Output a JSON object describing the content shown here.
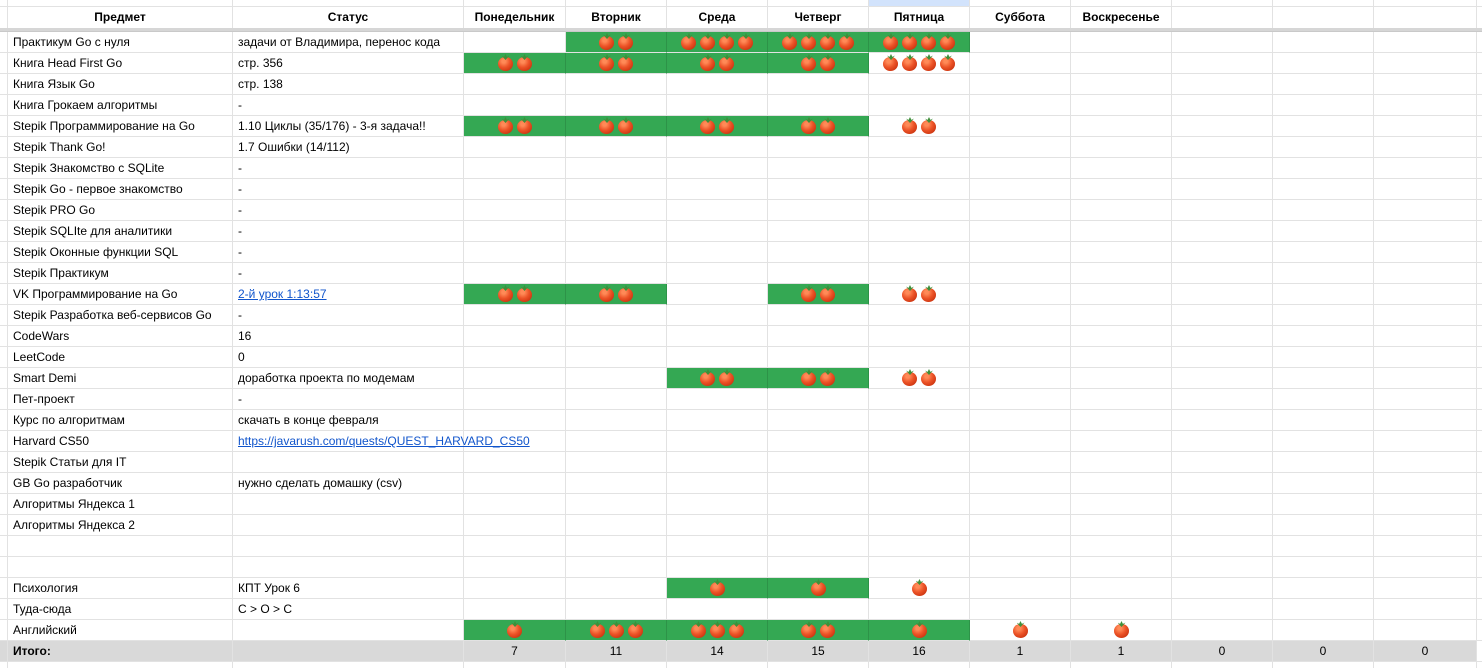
{
  "sheet": {
    "header": {
      "subject": "Предмет",
      "status": "Статус",
      "days": [
        "Понедельник",
        "Вторник",
        "Среда",
        "Четверг",
        "Пятница",
        "Суббота",
        "Воскресенье"
      ]
    },
    "selected_day_column": "Пятница",
    "rows": [
      {
        "subject": "Практикум Go с нуля",
        "status": "задачи от Владимира, перенос кода",
        "status_is_link": false,
        "days": [
          [
            0,
            0
          ],
          [
            2,
            1
          ],
          [
            4,
            1
          ],
          [
            4,
            1
          ],
          [
            4,
            1
          ],
          [
            0,
            0
          ],
          [
            0,
            0
          ]
        ]
      },
      {
        "subject": "Книга Head First Go",
        "status": "стр. 356",
        "status_is_link": false,
        "days": [
          [
            2,
            1
          ],
          [
            2,
            1
          ],
          [
            2,
            1
          ],
          [
            2,
            1
          ],
          [
            4,
            0
          ],
          [
            0,
            0
          ],
          [
            0,
            0
          ]
        ]
      },
      {
        "subject": "Книга Язык Go",
        "status": "стр. 138",
        "status_is_link": false,
        "days": [
          [
            0,
            0
          ],
          [
            0,
            0
          ],
          [
            0,
            0
          ],
          [
            0,
            0
          ],
          [
            0,
            0
          ],
          [
            0,
            0
          ],
          [
            0,
            0
          ]
        ]
      },
      {
        "subject": "Книга Грокаем алгоритмы",
        "status": "-",
        "status_is_link": false,
        "days": [
          [
            0,
            0
          ],
          [
            0,
            0
          ],
          [
            0,
            0
          ],
          [
            0,
            0
          ],
          [
            0,
            0
          ],
          [
            0,
            0
          ],
          [
            0,
            0
          ]
        ]
      },
      {
        "subject": "Stepik Программирование на Go",
        "status": "1.10 Циклы (35/176) - 3-я задача!!",
        "status_is_link": false,
        "days": [
          [
            2,
            1
          ],
          [
            2,
            1
          ],
          [
            2,
            1
          ],
          [
            2,
            1
          ],
          [
            2,
            0
          ],
          [
            0,
            0
          ],
          [
            0,
            0
          ]
        ]
      },
      {
        "subject": "Stepik Thank Go!",
        "status": "1.7 Ошибки (14/112)",
        "status_is_link": false,
        "days": [
          [
            0,
            0
          ],
          [
            0,
            0
          ],
          [
            0,
            0
          ],
          [
            0,
            0
          ],
          [
            0,
            0
          ],
          [
            0,
            0
          ],
          [
            0,
            0
          ]
        ]
      },
      {
        "subject": "Stepik Знакомство с SQLite",
        "status": "-",
        "status_is_link": false,
        "days": [
          [
            0,
            0
          ],
          [
            0,
            0
          ],
          [
            0,
            0
          ],
          [
            0,
            0
          ],
          [
            0,
            0
          ],
          [
            0,
            0
          ],
          [
            0,
            0
          ]
        ]
      },
      {
        "subject": "Stepik Go - первое знакомство",
        "status": "-",
        "status_is_link": false,
        "days": [
          [
            0,
            0
          ],
          [
            0,
            0
          ],
          [
            0,
            0
          ],
          [
            0,
            0
          ],
          [
            0,
            0
          ],
          [
            0,
            0
          ],
          [
            0,
            0
          ]
        ]
      },
      {
        "subject": "Stepik PRO Go",
        "status": "-",
        "status_is_link": false,
        "days": [
          [
            0,
            0
          ],
          [
            0,
            0
          ],
          [
            0,
            0
          ],
          [
            0,
            0
          ],
          [
            0,
            0
          ],
          [
            0,
            0
          ],
          [
            0,
            0
          ]
        ]
      },
      {
        "subject": "Stepik SQLIte для аналитики",
        "status": "-",
        "status_is_link": false,
        "days": [
          [
            0,
            0
          ],
          [
            0,
            0
          ],
          [
            0,
            0
          ],
          [
            0,
            0
          ],
          [
            0,
            0
          ],
          [
            0,
            0
          ],
          [
            0,
            0
          ]
        ]
      },
      {
        "subject": "Stepik Оконные функции SQL",
        "status": "-",
        "status_is_link": false,
        "days": [
          [
            0,
            0
          ],
          [
            0,
            0
          ],
          [
            0,
            0
          ],
          [
            0,
            0
          ],
          [
            0,
            0
          ],
          [
            0,
            0
          ],
          [
            0,
            0
          ]
        ]
      },
      {
        "subject": "Stepik Практикум",
        "status": "-",
        "status_is_link": false,
        "days": [
          [
            0,
            0
          ],
          [
            0,
            0
          ],
          [
            0,
            0
          ],
          [
            0,
            0
          ],
          [
            0,
            0
          ],
          [
            0,
            0
          ],
          [
            0,
            0
          ]
        ]
      },
      {
        "subject": "VK Программирование на Go",
        "status": "2-й урок 1:13:57",
        "status_is_link": true,
        "days": [
          [
            2,
            1
          ],
          [
            2,
            1
          ],
          [
            0,
            0
          ],
          [
            2,
            1
          ],
          [
            2,
            0
          ],
          [
            0,
            0
          ],
          [
            0,
            0
          ]
        ]
      },
      {
        "subject": "Stepik Разработка веб-сервисов Go",
        "status": "-",
        "status_is_link": false,
        "days": [
          [
            0,
            0
          ],
          [
            0,
            0
          ],
          [
            0,
            0
          ],
          [
            0,
            0
          ],
          [
            0,
            0
          ],
          [
            0,
            0
          ],
          [
            0,
            0
          ]
        ]
      },
      {
        "subject": "CodeWars",
        "status": "16",
        "status_is_link": false,
        "days": [
          [
            0,
            0
          ],
          [
            0,
            0
          ],
          [
            0,
            0
          ],
          [
            0,
            0
          ],
          [
            0,
            0
          ],
          [
            0,
            0
          ],
          [
            0,
            0
          ]
        ]
      },
      {
        "subject": "LeetCode",
        "status": "0",
        "status_is_link": false,
        "days": [
          [
            0,
            0
          ],
          [
            0,
            0
          ],
          [
            0,
            0
          ],
          [
            0,
            0
          ],
          [
            0,
            0
          ],
          [
            0,
            0
          ],
          [
            0,
            0
          ]
        ]
      },
      {
        "subject": "Smart Demi",
        "status": "доработка проекта по модемам",
        "status_is_link": false,
        "days": [
          [
            0,
            0
          ],
          [
            0,
            0
          ],
          [
            2,
            1
          ],
          [
            2,
            1
          ],
          [
            2,
            0
          ],
          [
            0,
            0
          ],
          [
            0,
            0
          ]
        ]
      },
      {
        "subject": "Пет-проект",
        "status": "-",
        "status_is_link": false,
        "days": [
          [
            0,
            0
          ],
          [
            0,
            0
          ],
          [
            0,
            0
          ],
          [
            0,
            0
          ],
          [
            0,
            0
          ],
          [
            0,
            0
          ],
          [
            0,
            0
          ]
        ]
      },
      {
        "subject": "Курс по алгоритмам",
        "status": "скачать в конце февраля",
        "status_is_link": false,
        "days": [
          [
            0,
            0
          ],
          [
            0,
            0
          ],
          [
            0,
            0
          ],
          [
            0,
            0
          ],
          [
            0,
            0
          ],
          [
            0,
            0
          ],
          [
            0,
            0
          ]
        ]
      },
      {
        "subject": "Harvard CS50",
        "status": "https://javarush.com/quests/QUEST_HARVARD_CS50",
        "status_is_link": true,
        "days": [
          [
            0,
            0
          ],
          [
            0,
            0
          ],
          [
            0,
            0
          ],
          [
            0,
            0
          ],
          [
            0,
            0
          ],
          [
            0,
            0
          ],
          [
            0,
            0
          ]
        ]
      },
      {
        "subject": "Stepik Статьи для IT",
        "status": "",
        "status_is_link": false,
        "days": [
          [
            0,
            0
          ],
          [
            0,
            0
          ],
          [
            0,
            0
          ],
          [
            0,
            0
          ],
          [
            0,
            0
          ],
          [
            0,
            0
          ],
          [
            0,
            0
          ]
        ]
      },
      {
        "subject": "GB Go разработчик",
        "status": "нужно сделать домашку (csv)",
        "status_is_link": false,
        "days": [
          [
            0,
            0
          ],
          [
            0,
            0
          ],
          [
            0,
            0
          ],
          [
            0,
            0
          ],
          [
            0,
            0
          ],
          [
            0,
            0
          ],
          [
            0,
            0
          ]
        ]
      },
      {
        "subject": "Алгоритмы Яндекса 1",
        "status": "",
        "status_is_link": false,
        "days": [
          [
            0,
            0
          ],
          [
            0,
            0
          ],
          [
            0,
            0
          ],
          [
            0,
            0
          ],
          [
            0,
            0
          ],
          [
            0,
            0
          ],
          [
            0,
            0
          ]
        ]
      },
      {
        "subject": "Алгоритмы Яндекса 2",
        "status": "",
        "status_is_link": false,
        "days": [
          [
            0,
            0
          ],
          [
            0,
            0
          ],
          [
            0,
            0
          ],
          [
            0,
            0
          ],
          [
            0,
            0
          ],
          [
            0,
            0
          ],
          [
            0,
            0
          ]
        ]
      },
      {
        "subject": "",
        "status": "",
        "status_is_link": false,
        "days": [
          [
            0,
            0
          ],
          [
            0,
            0
          ],
          [
            0,
            0
          ],
          [
            0,
            0
          ],
          [
            0,
            0
          ],
          [
            0,
            0
          ],
          [
            0,
            0
          ]
        ]
      },
      {
        "subject": "",
        "status": "",
        "status_is_link": false,
        "days": [
          [
            0,
            0
          ],
          [
            0,
            0
          ],
          [
            0,
            0
          ],
          [
            0,
            0
          ],
          [
            0,
            0
          ],
          [
            0,
            0
          ],
          [
            0,
            0
          ]
        ]
      },
      {
        "subject": "Психология",
        "status": "КПТ Урок 6",
        "status_is_link": false,
        "days": [
          [
            0,
            0
          ],
          [
            0,
            0
          ],
          [
            1,
            1
          ],
          [
            1,
            1
          ],
          [
            1,
            0
          ],
          [
            0,
            0
          ],
          [
            0,
            0
          ]
        ]
      },
      {
        "subject": "Туда-сюда",
        "status": "C > O > C",
        "status_is_link": false,
        "days": [
          [
            0,
            0
          ],
          [
            0,
            0
          ],
          [
            0,
            0
          ],
          [
            0,
            0
          ],
          [
            0,
            0
          ],
          [
            0,
            0
          ],
          [
            0,
            0
          ]
        ]
      },
      {
        "subject": "Английский",
        "status": "",
        "status_is_link": false,
        "days": [
          [
            1,
            1
          ],
          [
            3,
            1
          ],
          [
            3,
            1
          ],
          [
            2,
            1
          ],
          [
            1,
            1
          ],
          [
            1,
            0
          ],
          [
            1,
            0
          ]
        ]
      }
    ],
    "totals": {
      "label": "Итого:",
      "day_values": [
        "7",
        "11",
        "14",
        "15",
        "16",
        "1",
        "1"
      ],
      "extra_values": [
        "0",
        "0",
        "0"
      ]
    }
  },
  "icons": {
    "tomato": "tomato-icon"
  },
  "colors": {
    "cell_green": "#34a853",
    "totals_bg": "#d9d9d9",
    "link_blue": "#1155cc",
    "selected_cell_highlight": "#d2e3fc",
    "gridline": "#e2e2e2",
    "frozen_divider": "#d6d6d6",
    "tomato_red": "#d13a14",
    "tomato_leaf": "#3f8f3a"
  }
}
